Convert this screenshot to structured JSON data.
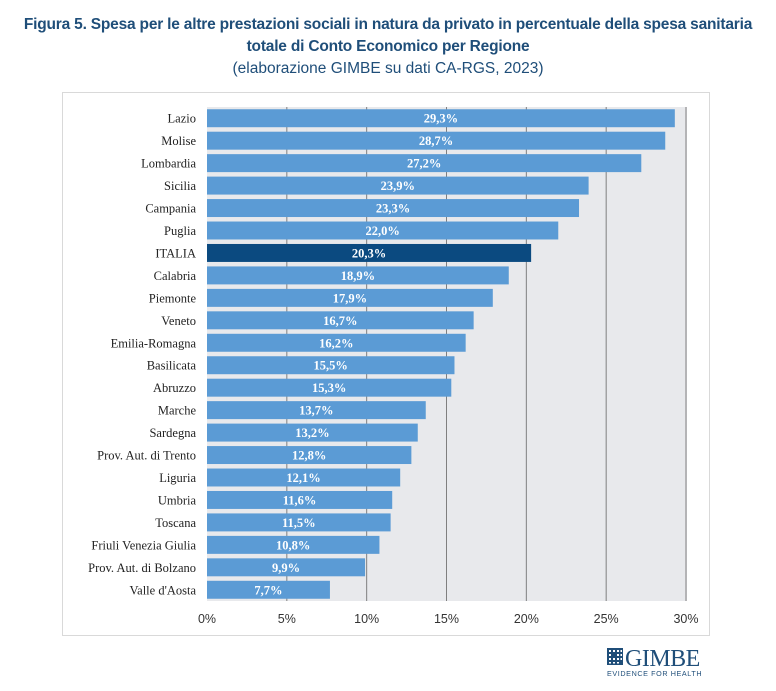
{
  "title": {
    "line1": "Figura 5. Spesa per le altre prestazioni sociali in natura da privato in percentuale della spesa sanitaria",
    "line2": "totale di Conto Economico per Regione",
    "subtitle": "(elaborazione GIMBE su dati CA-RGS, 2023)"
  },
  "logo": {
    "word": "GIMBE",
    "tagline": "EVIDENCE FOR HEALTH"
  },
  "colors": {
    "bar": "#5b9bd5",
    "highlight": "#0b4a80",
    "plot_bg": "#e8e9ec",
    "grid": "#7f7f7f",
    "title": "#1f4e79"
  },
  "chart_data": {
    "type": "bar",
    "orientation": "horizontal",
    "title": "Figura 5. Spesa per le altre prestazioni sociali in natura da privato in percentuale della spesa sanitaria totale di Conto Economico per Regione",
    "subtitle": "(elaborazione GIMBE su dati CA-RGS, 2023)",
    "xlabel": "",
    "ylabel": "",
    "xlim": [
      0,
      30
    ],
    "grid": true,
    "highlight_category": "ITALIA",
    "x_ticks": [
      0,
      5,
      10,
      15,
      20,
      25,
      30
    ],
    "x_tick_labels": [
      "0%",
      "5%",
      "10%",
      "15%",
      "20%",
      "25%",
      "30%"
    ],
    "categories": [
      "Lazio",
      "Molise",
      "Lombardia",
      "Sicilia",
      "Campania",
      "Puglia",
      "ITALIA",
      "Calabria",
      "Piemonte",
      "Veneto",
      "Emilia-Romagna",
      "Basilicata",
      "Abruzzo",
      "Marche",
      "Sardegna",
      "Prov. Aut. di Trento",
      "Liguria",
      "Umbria",
      "Toscana",
      "Friuli Venezia Giulia",
      "Prov. Aut. di Bolzano",
      "Valle d'Aosta"
    ],
    "values": [
      29.3,
      28.7,
      27.2,
      23.9,
      23.3,
      22.0,
      20.3,
      18.9,
      17.9,
      16.7,
      16.2,
      15.5,
      15.3,
      13.7,
      13.2,
      12.8,
      12.1,
      11.6,
      11.5,
      10.8,
      9.9,
      7.7
    ],
    "value_labels": [
      "29,3%",
      "28,7%",
      "27,2%",
      "23,9%",
      "23,3%",
      "22,0%",
      "20,3%",
      "18,9%",
      "17,9%",
      "16,7%",
      "16,2%",
      "15,5%",
      "15,3%",
      "13,7%",
      "13,2%",
      "12,8%",
      "12,1%",
      "11,6%",
      "11,5%",
      "10,8%",
      "9,9%",
      "7,7%"
    ]
  }
}
